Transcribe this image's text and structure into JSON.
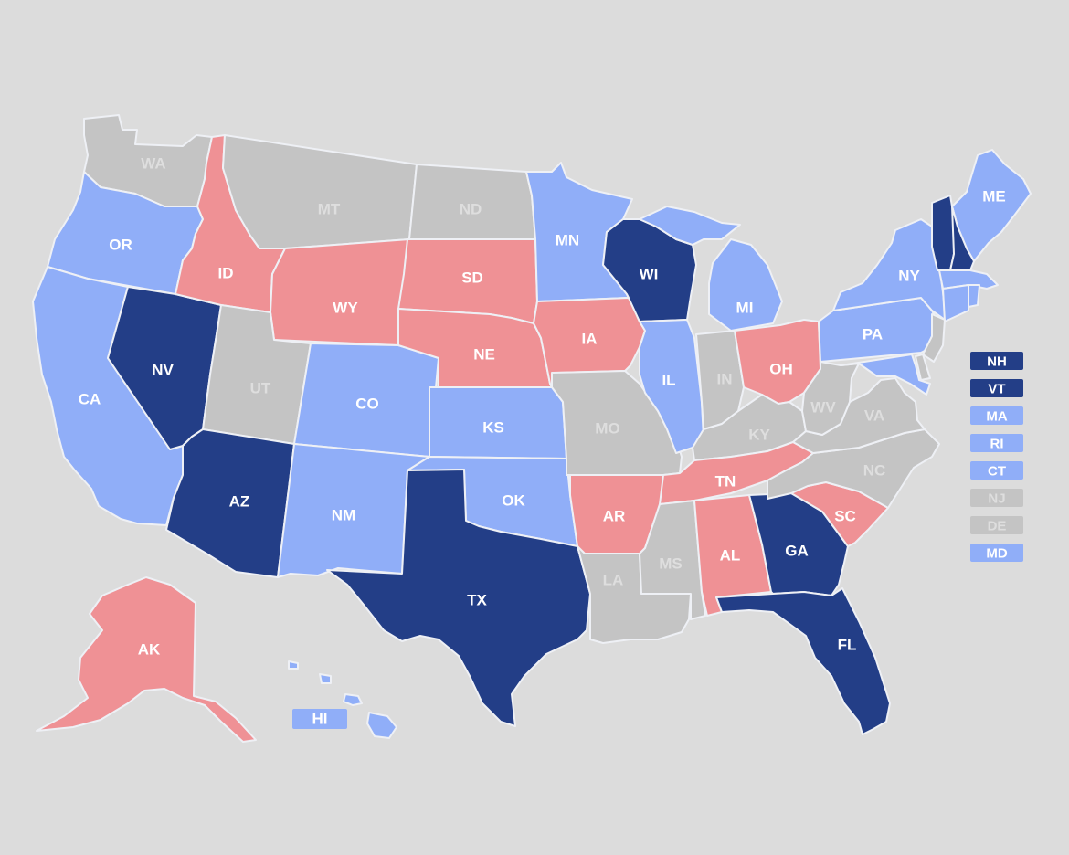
{
  "colors": {
    "background": "#dcdcdc",
    "dark_blue": "#233e87",
    "light_blue": "#90aef8",
    "pink": "#ef9195",
    "gray": "#c4c4c4",
    "label_light": "#ffffff",
    "label_on_gray": "#dedede"
  },
  "categories": [
    "dark_blue",
    "light_blue",
    "pink",
    "gray"
  ],
  "states": [
    {
      "abbr": "WA",
      "category": "gray"
    },
    {
      "abbr": "OR",
      "category": "light_blue"
    },
    {
      "abbr": "CA",
      "category": "light_blue"
    },
    {
      "abbr": "NV",
      "category": "dark_blue"
    },
    {
      "abbr": "ID",
      "category": "pink"
    },
    {
      "abbr": "MT",
      "category": "gray"
    },
    {
      "abbr": "WY",
      "category": "pink"
    },
    {
      "abbr": "UT",
      "category": "gray"
    },
    {
      "abbr": "AZ",
      "category": "dark_blue"
    },
    {
      "abbr": "CO",
      "category": "light_blue"
    },
    {
      "abbr": "NM",
      "category": "light_blue"
    },
    {
      "abbr": "ND",
      "category": "gray"
    },
    {
      "abbr": "SD",
      "category": "pink"
    },
    {
      "abbr": "NE",
      "category": "pink"
    },
    {
      "abbr": "KS",
      "category": "light_blue"
    },
    {
      "abbr": "OK",
      "category": "light_blue"
    },
    {
      "abbr": "TX",
      "category": "dark_blue"
    },
    {
      "abbr": "MN",
      "category": "light_blue"
    },
    {
      "abbr": "IA",
      "category": "pink"
    },
    {
      "abbr": "MO",
      "category": "gray"
    },
    {
      "abbr": "AR",
      "category": "pink"
    },
    {
      "abbr": "LA",
      "category": "gray"
    },
    {
      "abbr": "WI",
      "category": "dark_blue"
    },
    {
      "abbr": "IL",
      "category": "light_blue"
    },
    {
      "abbr": "MI",
      "category": "light_blue"
    },
    {
      "abbr": "IN",
      "category": "gray"
    },
    {
      "abbr": "OH",
      "category": "pink"
    },
    {
      "abbr": "KY",
      "category": "gray"
    },
    {
      "abbr": "TN",
      "category": "pink"
    },
    {
      "abbr": "MS",
      "category": "gray"
    },
    {
      "abbr": "AL",
      "category": "pink"
    },
    {
      "abbr": "GA",
      "category": "dark_blue"
    },
    {
      "abbr": "FL",
      "category": "dark_blue"
    },
    {
      "abbr": "SC",
      "category": "pink"
    },
    {
      "abbr": "NC",
      "category": "gray"
    },
    {
      "abbr": "VA",
      "category": "gray"
    },
    {
      "abbr": "WV",
      "category": "gray"
    },
    {
      "abbr": "PA",
      "category": "light_blue"
    },
    {
      "abbr": "NY",
      "category": "light_blue"
    },
    {
      "abbr": "ME",
      "category": "light_blue"
    },
    {
      "abbr": "AK",
      "category": "pink"
    },
    {
      "abbr": "HI",
      "category": "light_blue"
    }
  ],
  "small_states_key": [
    {
      "abbr": "NH",
      "category": "dark_blue"
    },
    {
      "abbr": "VT",
      "category": "dark_blue"
    },
    {
      "abbr": "MA",
      "category": "light_blue"
    },
    {
      "abbr": "RI",
      "category": "light_blue"
    },
    {
      "abbr": "CT",
      "category": "light_blue"
    },
    {
      "abbr": "NJ",
      "category": "gray"
    },
    {
      "abbr": "DE",
      "category": "gray"
    },
    {
      "abbr": "MD",
      "category": "light_blue"
    }
  ]
}
